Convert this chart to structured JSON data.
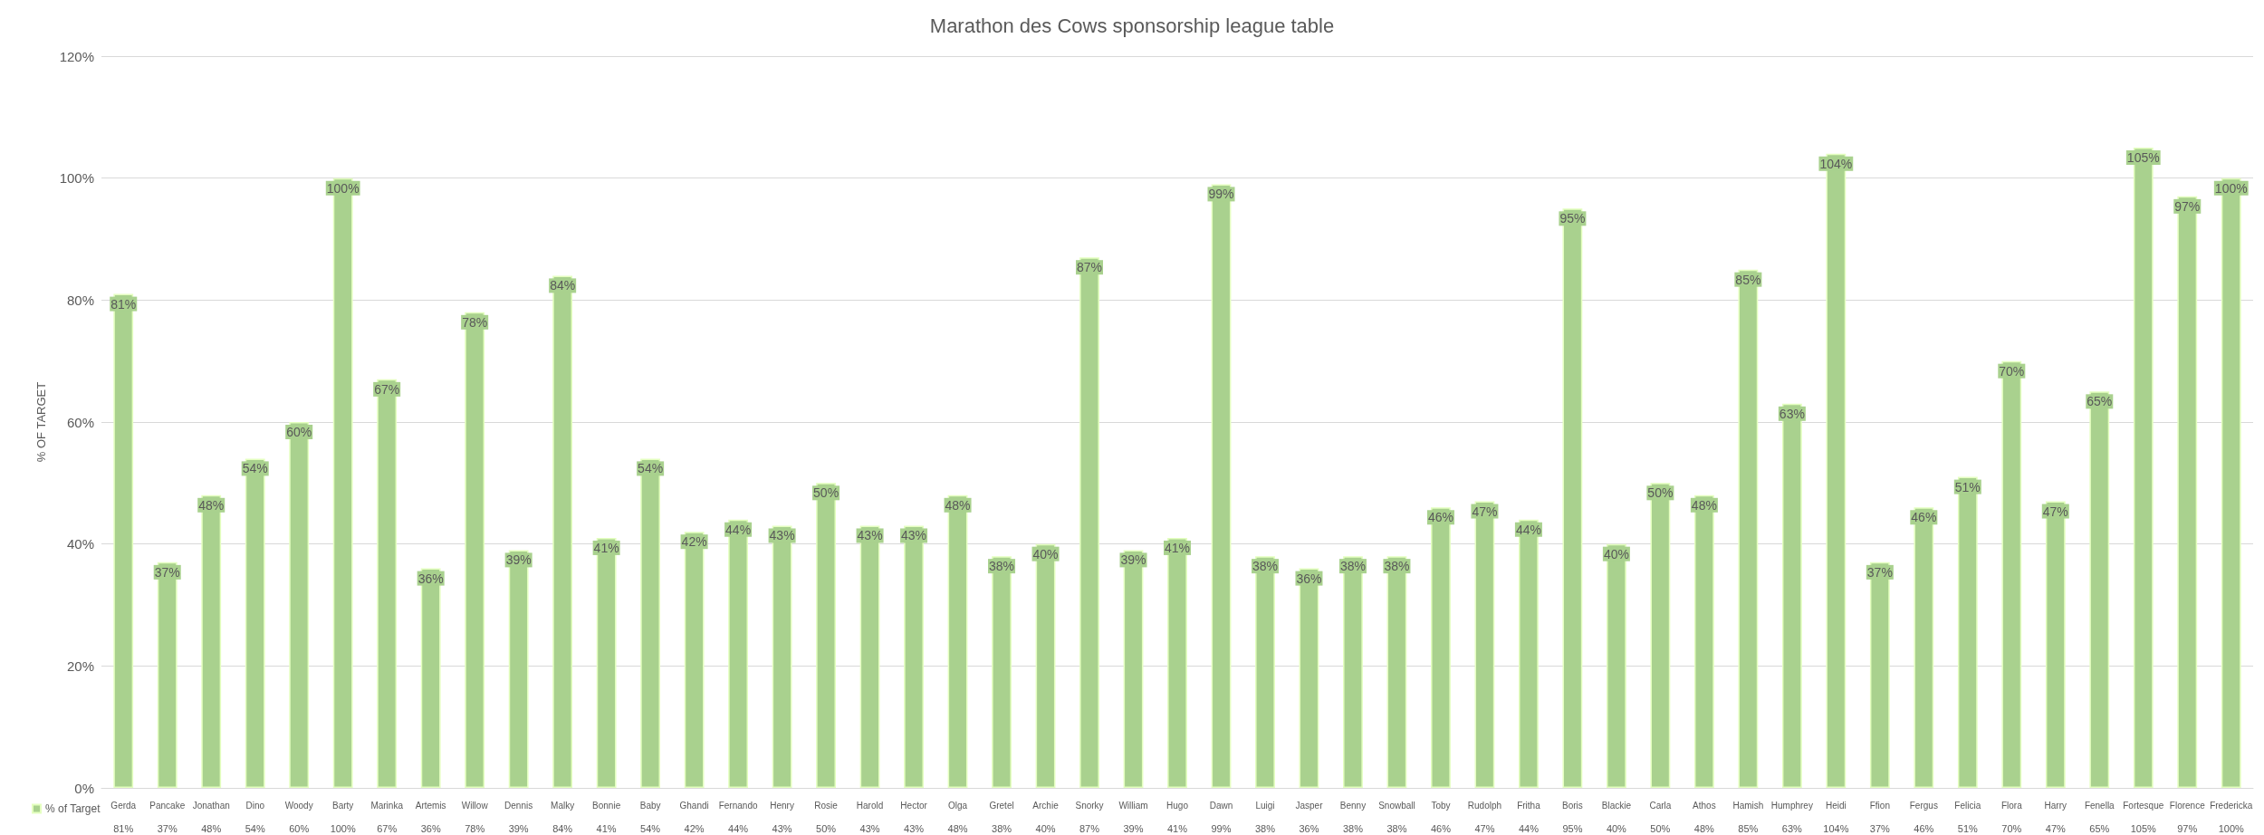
{
  "chart_data": {
    "type": "bar",
    "title": "Marathon des Cows sponsorship league table",
    "ylabel": "% OF TARGET",
    "categories": [
      "Gerda",
      "Pancake",
      "Jonathan",
      "Dino",
      "Woody",
      "Barty",
      "Marinka",
      "Artemis",
      "Willow",
      "Dennis",
      "Malky",
      "Bonnie",
      "Baby",
      "Ghandi",
      "Fernando",
      "Henry",
      "Rosie",
      "Harold",
      "Hector",
      "Olga",
      "Gretel",
      "Archie",
      "Snorky",
      "William",
      "Hugo",
      "Dawn",
      "Luigi",
      "Jasper",
      "Benny",
      "Snowball",
      "Toby",
      "Rudolph",
      "Fritha",
      "Boris",
      "Blackie",
      "Carla",
      "Athos",
      "Hamish",
      "Humphrey",
      "Heidi",
      "Ffion",
      "Fergus",
      "Felicia",
      "Flora",
      "Harry",
      "Fenella",
      "Fortesque",
      "Florence",
      "Fredericka"
    ],
    "series": [
      {
        "name": "% of Target",
        "color": "#a9d18e",
        "values": [
          81,
          37,
          48,
          54,
          60,
          100,
          67,
          36,
          78,
          39,
          84,
          41,
          54,
          42,
          44,
          43,
          50,
          43,
          43,
          48,
          38,
          40,
          87,
          39,
          41,
          99,
          38,
          36,
          38,
          38,
          46,
          47,
          44,
          95,
          40,
          50,
          48,
          85,
          63,
          104,
          37,
          46,
          51,
          70,
          47,
          65,
          105,
          97,
          100
        ],
        "value_labels": [
          "81%",
          "37%",
          "48%",
          "54%",
          "60%",
          "100%",
          "67%",
          "36%",
          "78%",
          "39%",
          "84%",
          "41%",
          "54%",
          "42%",
          "44%",
          "43%",
          "50%",
          "43%",
          "43%",
          "48%",
          "38%",
          "40%",
          "87%",
          "39%",
          "41%",
          "99%",
          "38%",
          "36%",
          "38%",
          "38%",
          "46%",
          "47%",
          "44%",
          "95%",
          "40%",
          "50%",
          "48%",
          "85%",
          "63%",
          "104%",
          "37%",
          "46%",
          "51%",
          "70%",
          "47%",
          "65%",
          "105%",
          "97%",
          "100%"
        ]
      }
    ],
    "ylim": [
      0,
      120
    ],
    "yticks": [
      {
        "value": 0,
        "label": "0%"
      },
      {
        "value": 20,
        "label": "20%"
      },
      {
        "value": 40,
        "label": "40%"
      },
      {
        "value": 60,
        "label": "60%"
      },
      {
        "value": 80,
        "label": "80%"
      },
      {
        "value": 100,
        "label": "100%"
      },
      {
        "value": 120,
        "label": "120%"
      }
    ],
    "grid": "y",
    "legend": "bottom left"
  }
}
